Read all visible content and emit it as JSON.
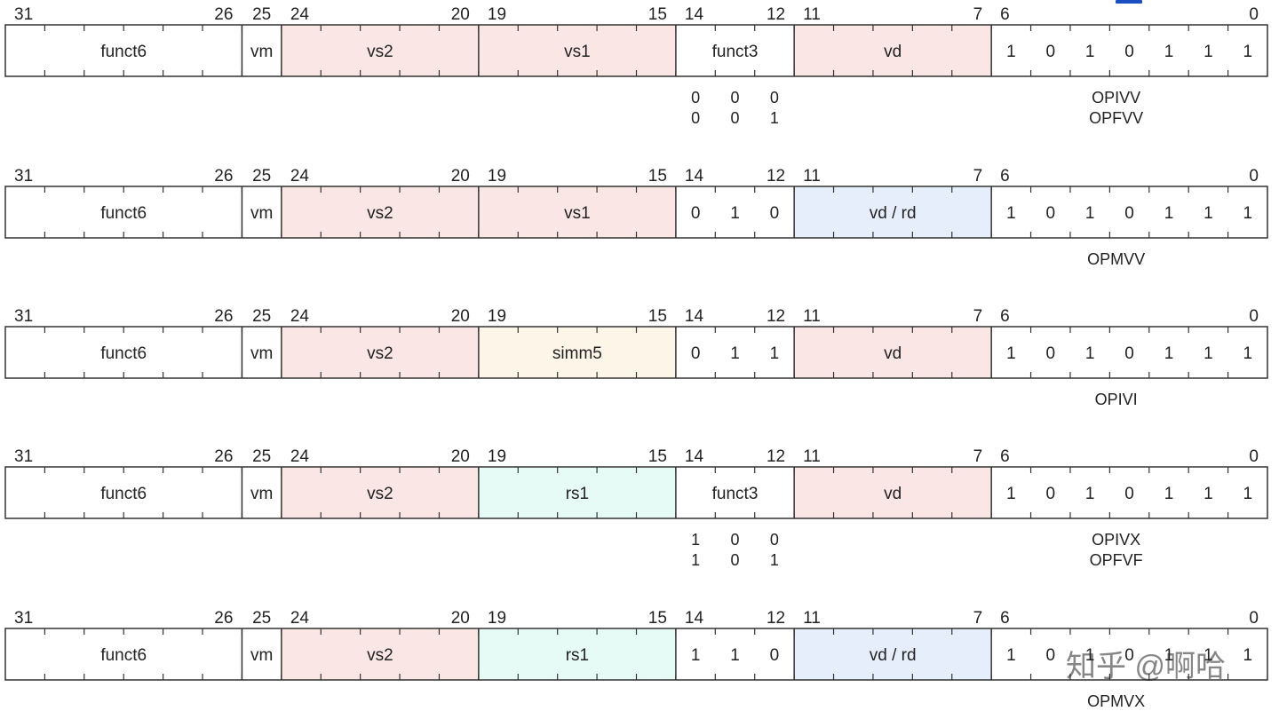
{
  "colors": {
    "vector_register": "#fbe6e6",
    "scalar_register": "#e6fbf6",
    "dest_register": "#e6eefb",
    "immediate": "#fdf6e8",
    "plain": "#ffffff",
    "stroke": "#333333",
    "badge": "#1a4fc4",
    "watermark": "#c8c8c8"
  },
  "rows": [
    {
      "fields": [
        {
          "label": "funct6",
          "color": "plain",
          "hi": "31",
          "lo": "26"
        },
        {
          "label": "vm",
          "color": "plain",
          "hi": "25",
          "lo": ""
        },
        {
          "label": "vs2",
          "color": "vector_register",
          "hi": "24",
          "lo": "20"
        },
        {
          "label": "vs1",
          "color": "vector_register",
          "hi": "19",
          "lo": "15"
        },
        {
          "label": "funct3",
          "color": "plain",
          "hi": "14",
          "lo": "12"
        },
        {
          "label": "vd",
          "color": "vector_register",
          "hi": "11",
          "lo": "7"
        },
        {
          "bits": [
            "1",
            "0",
            "1",
            "0",
            "1",
            "1",
            "1"
          ],
          "color": "plain",
          "hi": "6",
          "lo": "0"
        }
      ],
      "funct3_values": [
        [
          "0",
          "0",
          "0"
        ],
        [
          "0",
          "0",
          "1"
        ]
      ],
      "names": [
        "OPIVV",
        "OPFVV"
      ]
    },
    {
      "fields": [
        {
          "label": "funct6",
          "color": "plain",
          "hi": "31",
          "lo": "26"
        },
        {
          "label": "vm",
          "color": "plain",
          "hi": "25",
          "lo": ""
        },
        {
          "label": "vs2",
          "color": "vector_register",
          "hi": "24",
          "lo": "20"
        },
        {
          "label": "vs1",
          "color": "vector_register",
          "hi": "19",
          "lo": "15"
        },
        {
          "bits": [
            "0",
            "1",
            "0"
          ],
          "color": "plain",
          "hi": "14",
          "lo": "12"
        },
        {
          "label": "vd / rd",
          "color": "dest_register",
          "hi": "11",
          "lo": "7"
        },
        {
          "bits": [
            "1",
            "0",
            "1",
            "0",
            "1",
            "1",
            "1"
          ],
          "color": "plain",
          "hi": "6",
          "lo": "0"
        }
      ],
      "funct3_values": [],
      "names": [
        "OPMVV"
      ]
    },
    {
      "fields": [
        {
          "label": "funct6",
          "color": "plain",
          "hi": "31",
          "lo": "26"
        },
        {
          "label": "vm",
          "color": "plain",
          "hi": "25",
          "lo": ""
        },
        {
          "label": "vs2",
          "color": "vector_register",
          "hi": "24",
          "lo": "20"
        },
        {
          "label": "simm5",
          "color": "immediate",
          "hi": "19",
          "lo": "15"
        },
        {
          "bits": [
            "0",
            "1",
            "1"
          ],
          "color": "plain",
          "hi": "14",
          "lo": "12"
        },
        {
          "label": "vd",
          "color": "vector_register",
          "hi": "11",
          "lo": "7"
        },
        {
          "bits": [
            "1",
            "0",
            "1",
            "0",
            "1",
            "1",
            "1"
          ],
          "color": "plain",
          "hi": "6",
          "lo": "0"
        }
      ],
      "funct3_values": [],
      "names": [
        "OPIVI"
      ]
    },
    {
      "fields": [
        {
          "label": "funct6",
          "color": "plain",
          "hi": "31",
          "lo": "26"
        },
        {
          "label": "vm",
          "color": "plain",
          "hi": "25",
          "lo": ""
        },
        {
          "label": "vs2",
          "color": "vector_register",
          "hi": "24",
          "lo": "20"
        },
        {
          "label": "rs1",
          "color": "scalar_register",
          "hi": "19",
          "lo": "15"
        },
        {
          "label": "funct3",
          "color": "plain",
          "hi": "14",
          "lo": "12"
        },
        {
          "label": "vd",
          "color": "vector_register",
          "hi": "11",
          "lo": "7"
        },
        {
          "bits": [
            "1",
            "0",
            "1",
            "0",
            "1",
            "1",
            "1"
          ],
          "color": "plain",
          "hi": "6",
          "lo": "0"
        }
      ],
      "funct3_values": [
        [
          "1",
          "0",
          "0"
        ],
        [
          "1",
          "0",
          "1"
        ]
      ],
      "names": [
        "OPIVX",
        "OPFVF"
      ]
    },
    {
      "fields": [
        {
          "label": "funct6",
          "color": "plain",
          "hi": "31",
          "lo": "26"
        },
        {
          "label": "vm",
          "color": "plain",
          "hi": "25",
          "lo": ""
        },
        {
          "label": "vs2",
          "color": "vector_register",
          "hi": "24",
          "lo": "20"
        },
        {
          "label": "rs1",
          "color": "scalar_register",
          "hi": "19",
          "lo": "15"
        },
        {
          "bits": [
            "1",
            "1",
            "0"
          ],
          "color": "plain",
          "hi": "14",
          "lo": "12"
        },
        {
          "label": "vd / rd",
          "color": "dest_register",
          "hi": "11",
          "lo": "7"
        },
        {
          "bits": [
            "1",
            "0",
            "1",
            "0",
            "1",
            "1",
            "1"
          ],
          "color": "plain",
          "hi": "6",
          "lo": "0"
        }
      ],
      "funct3_values": [],
      "names": [
        "OPMVX"
      ]
    }
  ],
  "watermark": "知乎 @啊哈"
}
